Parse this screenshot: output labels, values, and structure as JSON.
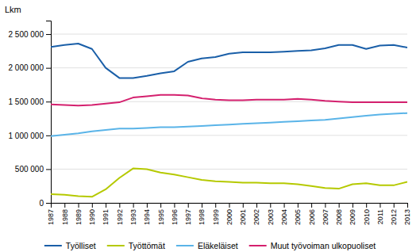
{
  "chart_data": {
    "type": "line",
    "ylabel": "Lkm",
    "x": [
      1987,
      1988,
      1989,
      1990,
      1991,
      1992,
      1993,
      1994,
      1995,
      1996,
      1997,
      1998,
      1999,
      2000,
      2001,
      2002,
      2003,
      2004,
      2005,
      2006,
      2007,
      2008,
      2009,
      2010,
      2011,
      2012,
      2013
    ],
    "xlim": [
      1987,
      2013
    ],
    "xticks": [
      1987,
      1988,
      1989,
      1990,
      1991,
      1992,
      1993,
      1994,
      1995,
      1996,
      1997,
      1998,
      1999,
      2000,
      2001,
      2002,
      2003,
      2004,
      2005,
      2006,
      2007,
      2008,
      2009,
      2010,
      2011,
      2012,
      2013
    ],
    "ylim": [
      0,
      2700000
    ],
    "yticks": [
      0,
      {
        "value": 500000,
        "label": "500 000"
      },
      {
        "value": 1000000,
        "label": "1 000 000"
      },
      {
        "value": 1500000,
        "label": "1 500 000"
      },
      {
        "value": 2000000,
        "label": "2 000 000"
      },
      {
        "value": 2500000,
        "label": "2 500 000"
      }
    ],
    "grid": true,
    "legend": "bottom",
    "series": [
      {
        "name": "Työlliset",
        "color": "#1a5fa8",
        "values": [
          2310000,
          2340000,
          2360000,
          2280000,
          2000000,
          1850000,
          1850000,
          1880000,
          1920000,
          1950000,
          2090000,
          2140000,
          2160000,
          2210000,
          2230000,
          2230000,
          2230000,
          2240000,
          2250000,
          2260000,
          2290000,
          2340000,
          2340000,
          2280000,
          2330000,
          2340000,
          2300000
        ]
      },
      {
        "name": "Työttömät",
        "color": "#b5c900",
        "values": [
          130000,
          120000,
          100000,
          90000,
          200000,
          370000,
          510000,
          500000,
          450000,
          420000,
          380000,
          340000,
          320000,
          310000,
          300000,
          300000,
          290000,
          290000,
          275000,
          250000,
          220000,
          210000,
          275000,
          290000,
          260000,
          260000,
          310000
        ]
      },
      {
        "name": "Eläkeläiset",
        "color": "#5ab4e8",
        "values": [
          990000,
          1010000,
          1030000,
          1060000,
          1080000,
          1100000,
          1100000,
          1110000,
          1120000,
          1120000,
          1130000,
          1140000,
          1150000,
          1160000,
          1170000,
          1180000,
          1190000,
          1200000,
          1210000,
          1220000,
          1230000,
          1250000,
          1270000,
          1290000,
          1310000,
          1320000,
          1330000
        ]
      },
      {
        "name": "Muut työvoiman ulkopuoliset",
        "color": "#d4206e",
        "values": [
          1460000,
          1450000,
          1440000,
          1450000,
          1470000,
          1490000,
          1560000,
          1580000,
          1600000,
          1600000,
          1590000,
          1550000,
          1530000,
          1520000,
          1520000,
          1530000,
          1530000,
          1530000,
          1540000,
          1530000,
          1510000,
          1500000,
          1490000,
          1490000,
          1490000,
          1490000,
          1490000
        ]
      }
    ]
  }
}
